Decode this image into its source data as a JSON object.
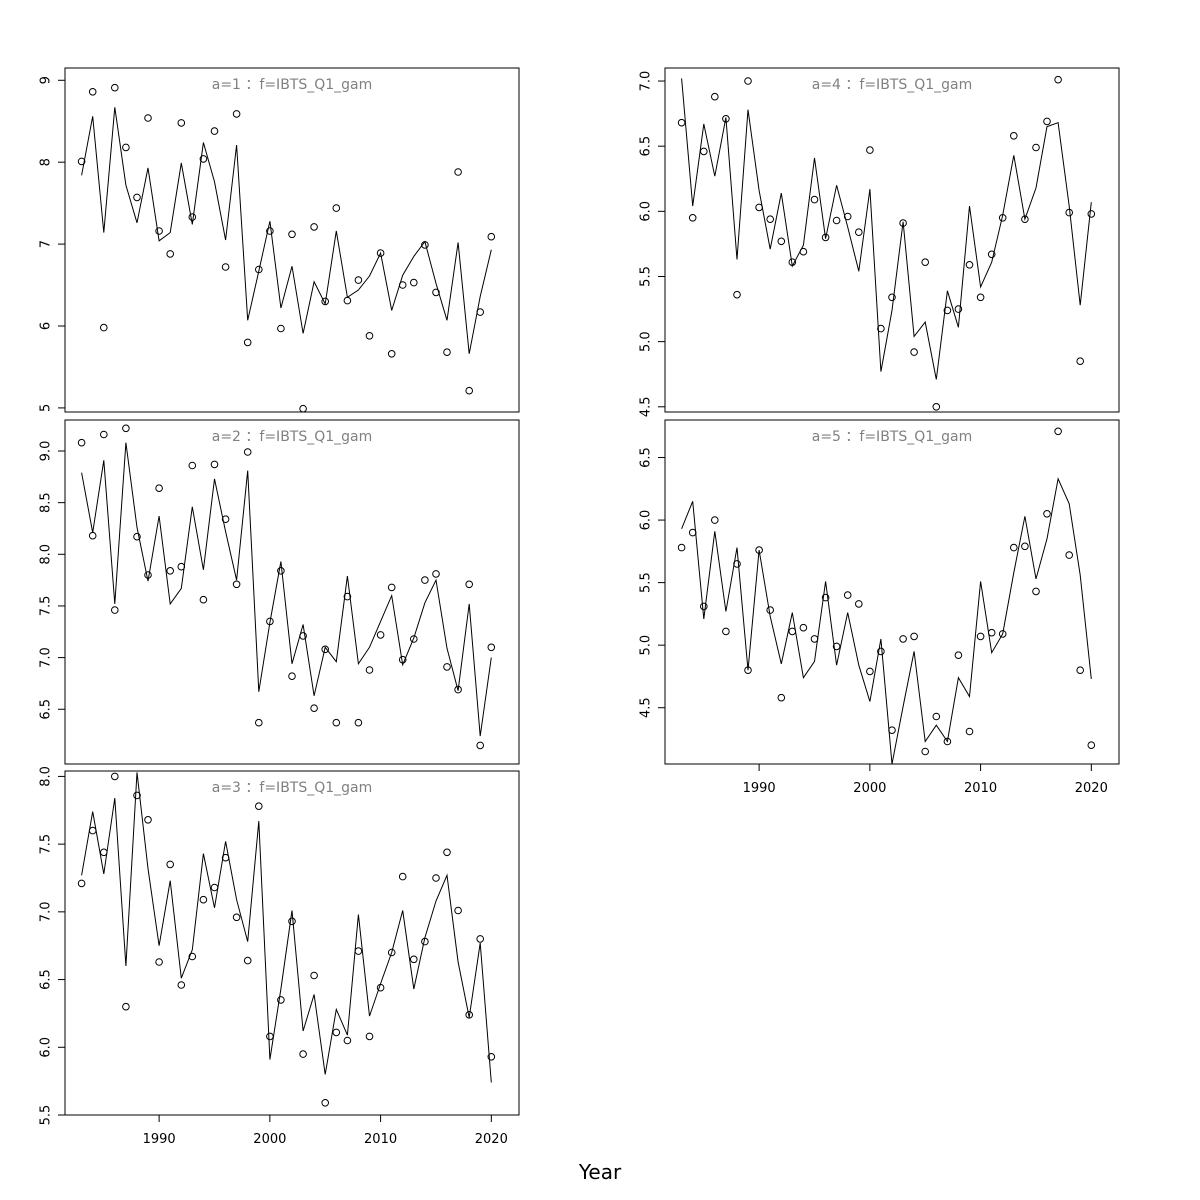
{
  "figure": {
    "xlabel": "Year"
  },
  "colors": {
    "line": "#000000",
    "point": "#000000",
    "panel_title": "#808080",
    "frame": "#000000"
  },
  "chart_data": [
    {
      "type": "line",
      "title": "a=1 ：f=IBTS_Q1_gam",
      "xlabel": "",
      "ylabel": "",
      "xlim": [
        1981.5,
        2022.5
      ],
      "ylim": [
        4.95,
        9.15
      ],
      "yticks": [
        5,
        6,
        7,
        8,
        9
      ],
      "xticks": [],
      "x": [
        1983,
        1984,
        1985,
        1986,
        1987,
        1988,
        1989,
        1990,
        1991,
        1992,
        1993,
        1994,
        1995,
        1996,
        1997,
        1998,
        1999,
        2000,
        2001,
        2002,
        2003,
        2004,
        2005,
        2006,
        2007,
        2008,
        2009,
        2010,
        2011,
        2012,
        2013,
        2014,
        2015,
        2016,
        2017,
        2018,
        2019,
        2020
      ],
      "series": [
        {
          "kind": "points",
          "values": [
            8.01,
            8.86,
            5.98,
            8.91,
            8.18,
            7.57,
            8.54,
            7.16,
            6.88,
            8.48,
            7.33,
            8.04,
            8.38,
            6.72,
            8.59,
            5.8,
            6.69,
            7.16,
            5.97,
            7.12,
            4.99,
            7.21,
            6.3,
            7.44,
            6.31,
            6.56,
            5.88,
            6.89,
            5.66,
            6.5,
            6.53,
            6.99,
            6.41,
            5.68,
            7.88,
            5.21,
            6.17,
            7.09
          ]
        },
        {
          "kind": "line",
          "values": [
            7.84,
            8.56,
            7.14,
            8.67,
            7.72,
            7.26,
            7.93,
            7.04,
            7.14,
            7.99,
            7.24,
            8.24,
            7.76,
            7.05,
            8.21,
            6.07,
            6.67,
            7.28,
            6.22,
            6.73,
            5.91,
            6.54,
            6.27,
            7.16,
            6.35,
            6.44,
            6.61,
            6.89,
            6.19,
            6.62,
            6.85,
            7.03,
            6.52,
            6.07,
            7.02,
            5.66,
            6.36,
            6.93
          ]
        }
      ]
    },
    {
      "type": "line",
      "title": "a=2 ：f=IBTS_Q1_gam",
      "xlabel": "",
      "ylabel": "",
      "xlim": [
        1981.5,
        2022.5
      ],
      "ylim": [
        5.97,
        9.3
      ],
      "yticks": [
        6.5,
        7.0,
        7.5,
        8.0,
        8.5,
        9.0
      ],
      "xticks": [],
      "x": [
        1983,
        1984,
        1985,
        1986,
        1987,
        1988,
        1989,
        1990,
        1991,
        1992,
        1993,
        1994,
        1995,
        1996,
        1997,
        1998,
        1999,
        2000,
        2001,
        2002,
        2003,
        2004,
        2005,
        2006,
        2007,
        2008,
        2009,
        2010,
        2011,
        2012,
        2013,
        2014,
        2015,
        2016,
        2017,
        2018,
        2019,
        2020
      ],
      "series": [
        {
          "kind": "points",
          "values": [
            9.08,
            8.18,
            9.16,
            7.46,
            9.22,
            8.17,
            7.8,
            8.64,
            7.84,
            7.88,
            8.86,
            7.56,
            8.87,
            8.34,
            7.71,
            8.99,
            6.37,
            7.35,
            7.84,
            6.82,
            7.21,
            6.51,
            7.08,
            6.37,
            7.59,
            6.37,
            6.88,
            7.22,
            7.68,
            6.98,
            7.18,
            7.75,
            7.81,
            6.91,
            6.69,
            7.71,
            6.15,
            7.1
          ]
        },
        {
          "kind": "line",
          "values": [
            8.79,
            8.21,
            8.91,
            7.52,
            9.08,
            8.26,
            7.74,
            8.37,
            7.52,
            7.67,
            8.46,
            7.85,
            8.73,
            8.22,
            7.75,
            8.81,
            6.67,
            7.34,
            7.93,
            6.94,
            7.32,
            6.63,
            7.1,
            6.96,
            7.79,
            6.94,
            7.1,
            7.35,
            7.6,
            6.93,
            7.19,
            7.53,
            7.75,
            7.09,
            6.68,
            7.52,
            6.24,
            7.0
          ]
        }
      ]
    },
    {
      "type": "line",
      "title": "a=3 ：f=IBTS_Q1_gam",
      "xlabel": "",
      "ylabel": "",
      "xlim": [
        1981.5,
        2022.5
      ],
      "ylim": [
        5.5,
        8.04
      ],
      "yticks": [
        5.5,
        6.0,
        6.5,
        7.0,
        7.5,
        8.0
      ],
      "xticks": [
        1990,
        2000,
        2010,
        2020
      ],
      "x": [
        1983,
        1984,
        1985,
        1986,
        1987,
        1988,
        1989,
        1990,
        1991,
        1992,
        1993,
        1994,
        1995,
        1996,
        1997,
        1998,
        1999,
        2000,
        2001,
        2002,
        2003,
        2004,
        2005,
        2006,
        2007,
        2008,
        2009,
        2010,
        2011,
        2012,
        2013,
        2014,
        2015,
        2016,
        2017,
        2018,
        2019,
        2020
      ],
      "series": [
        {
          "kind": "points",
          "values": [
            7.21,
            7.6,
            7.44,
            8.0,
            6.3,
            7.86,
            7.68,
            6.63,
            7.35,
            6.46,
            6.67,
            7.09,
            7.18,
            7.4,
            6.96,
            6.64,
            7.78,
            6.08,
            6.35,
            6.93,
            5.95,
            6.53,
            5.59,
            6.11,
            6.05,
            6.71,
            6.08,
            6.44,
            6.7,
            7.26,
            6.65,
            6.78,
            7.25,
            7.44,
            7.01,
            6.24,
            6.8,
            5.93
          ]
        },
        {
          "kind": "line",
          "values": [
            7.27,
            7.74,
            7.28,
            7.84,
            6.6,
            8.03,
            7.32,
            6.75,
            7.23,
            6.51,
            6.72,
            7.43,
            7.03,
            7.52,
            7.09,
            6.78,
            7.67,
            5.91,
            6.43,
            7.01,
            6.12,
            6.39,
            5.8,
            6.28,
            6.09,
            6.98,
            6.23,
            6.47,
            6.7,
            7.01,
            6.43,
            6.81,
            7.08,
            7.27,
            6.63,
            6.22,
            6.77,
            5.74
          ]
        }
      ]
    },
    {
      "type": "line",
      "title": "a=4 ：f=IBTS_Q1_gam",
      "xlabel": "",
      "ylabel": "",
      "xlim": [
        1981.5,
        2022.5
      ],
      "ylim": [
        4.46,
        7.1
      ],
      "yticks": [
        4.5,
        5.0,
        5.5,
        6.0,
        6.5,
        7.0
      ],
      "xticks": [],
      "x": [
        1983,
        1984,
        1985,
        1986,
        1987,
        1988,
        1989,
        1990,
        1991,
        1992,
        1993,
        1994,
        1995,
        1996,
        1997,
        1998,
        1999,
        2000,
        2001,
        2002,
        2003,
        2004,
        2005,
        2006,
        2007,
        2008,
        2009,
        2010,
        2011,
        2012,
        2013,
        2014,
        2015,
        2016,
        2017,
        2018,
        2019,
        2020
      ],
      "series": [
        {
          "kind": "points",
          "values": [
            6.68,
            5.95,
            6.46,
            6.88,
            6.71,
            5.36,
            7.0,
            6.03,
            5.94,
            5.77,
            5.61,
            5.69,
            6.09,
            5.8,
            5.93,
            5.96,
            5.84,
            6.47,
            5.1,
            5.34,
            5.91,
            4.92,
            5.61,
            4.5,
            5.24,
            5.25,
            5.59,
            5.34,
            5.67,
            5.95,
            6.58,
            5.94,
            6.49,
            6.69,
            7.01,
            5.99,
            4.85,
            5.98
          ]
        },
        {
          "kind": "line",
          "values": [
            7.02,
            6.04,
            6.67,
            6.27,
            6.72,
            5.63,
            6.78,
            6.16,
            5.71,
            6.14,
            5.58,
            5.74,
            6.41,
            5.79,
            6.2,
            5.88,
            5.54,
            6.17,
            4.77,
            5.24,
            5.92,
            5.04,
            5.15,
            4.71,
            5.39,
            5.11,
            6.04,
            5.42,
            5.61,
            5.97,
            6.43,
            5.94,
            6.18,
            6.65,
            6.68,
            6.04,
            5.28,
            6.07
          ]
        }
      ]
    },
    {
      "type": "line",
      "title": "a=5 ：f=IBTS_Q1_gam",
      "xlabel": "",
      "ylabel": "",
      "xlim": [
        1981.5,
        2022.5
      ],
      "ylim": [
        4.05,
        6.8
      ],
      "yticks": [
        4.5,
        5.0,
        5.5,
        6.0,
        6.5
      ],
      "xticks": [
        1990,
        2000,
        2010,
        2020
      ],
      "x": [
        1983,
        1984,
        1985,
        1986,
        1987,
        1988,
        1989,
        1990,
        1991,
        1992,
        1993,
        1994,
        1995,
        1996,
        1997,
        1998,
        1999,
        2000,
        2001,
        2002,
        2003,
        2004,
        2005,
        2006,
        2007,
        2008,
        2009,
        2010,
        2011,
        2012,
        2013,
        2014,
        2015,
        2016,
        2017,
        2018,
        2019,
        2020
      ],
      "series": [
        {
          "kind": "points",
          "values": [
            5.78,
            5.9,
            5.31,
            6.0,
            5.11,
            5.65,
            4.8,
            5.76,
            5.28,
            4.58,
            5.11,
            5.14,
            5.05,
            5.38,
            4.99,
            5.4,
            5.33,
            4.79,
            4.95,
            4.32,
            5.05,
            5.07,
            4.15,
            4.43,
            4.23,
            4.92,
            4.31,
            5.07,
            5.1,
            5.09,
            5.78,
            5.79,
            5.43,
            6.05,
            6.71,
            5.72,
            4.8,
            4.2
          ]
        },
        {
          "kind": "line",
          "values": [
            5.93,
            6.15,
            5.21,
            5.91,
            5.27,
            5.78,
            4.8,
            5.76,
            5.23,
            4.85,
            5.26,
            4.74,
            4.87,
            5.51,
            4.84,
            5.26,
            4.84,
            4.55,
            5.05,
            4.05,
            4.51,
            4.95,
            4.23,
            4.36,
            4.23,
            4.74,
            4.59,
            5.51,
            4.94,
            5.09,
            5.58,
            6.03,
            5.53,
            5.85,
            6.33,
            6.13,
            5.56,
            4.73
          ]
        }
      ]
    }
  ]
}
